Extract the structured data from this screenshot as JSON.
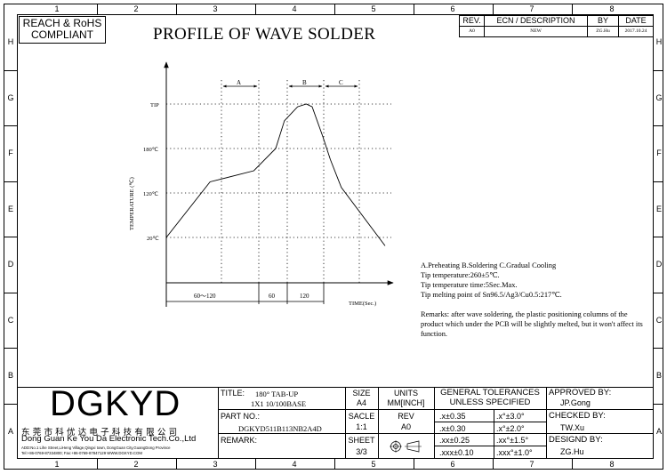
{
  "grid": {
    "columns": [
      "1",
      "2",
      "3",
      "4",
      "5",
      "6",
      "7",
      "8"
    ],
    "rows": [
      "H",
      "G",
      "F",
      "E",
      "D",
      "C",
      "B",
      "A"
    ]
  },
  "compliance": {
    "line1": "REACH & RoHS",
    "line2": "COMPLIANT"
  },
  "page_title": "PROFILE OF WAVE SOLDER",
  "revision": {
    "headers": [
      "REV.",
      "ECN / DESCRIPTION",
      "BY",
      "DATE"
    ],
    "row": [
      "A0",
      "NEW",
      "ZG.Hu",
      "2017.10.24"
    ]
  },
  "chart_data": {
    "type": "line",
    "ylabel": "TEMPERATURE (℃)",
    "xlabel": "TIME(Sec.)",
    "y_ticks": [
      "TIP",
      "180℃",
      "120℃",
      "20℃"
    ],
    "y_tick_values": [
      260,
      180,
      120,
      20
    ],
    "zones": [
      "A",
      "B",
      "C"
    ],
    "x_segments": [
      {
        "label": "60～120",
        "duration": [
          60,
          120
        ]
      },
      {
        "label": "60",
        "duration": 60
      },
      {
        "label": "120",
        "duration": 120
      }
    ],
    "series": [
      {
        "points": [
          [
            0,
            20
          ],
          [
            60,
            120
          ],
          [
            120,
            140
          ],
          [
            150,
            180
          ],
          [
            162,
            230
          ],
          [
            180,
            255
          ],
          [
            192,
            260
          ],
          [
            200,
            255
          ],
          [
            215,
            200
          ],
          [
            225,
            160
          ],
          [
            240,
            110
          ],
          [
            300,
            5
          ]
        ]
      }
    ]
  },
  "notes": {
    "line1": "A.Preheating  B.Soldering  C.Gradual Cooling",
    "line2": "Tip temperature:260±5℃.",
    "line3": "Tip temperature time:5Sec.Max.",
    "line4": "Tip melting point of Sn96.5/Ag3/Cu0.5:217℃.",
    "remarks": "Remarks: after wave soldering, the plastic positioning columns of the product  which under the PCB will be slightly melted, but it won't affect its function."
  },
  "company": {
    "logo": "DGKYD",
    "name_cn": "东 莞 市 科 优 达 电 子 科 技 有 限 公 司",
    "name_en": "Dong Guan Ke You Da Electronic Tech.Co.,Ltd",
    "address": "ADD:No.1 Lihe Street,LiHeng Village,Qingxi town, DongGuan City,GuangDong Province",
    "contact": "Tel:+86-0769-87334800; Fax:+86-0769-87847129  WWW.DGKYD.COM"
  },
  "title_block": {
    "title_label": "TITLE:",
    "title_line1": "180° TAB-UP",
    "title_line2": "1X1 10/100BASE",
    "part_label": "PART NO.:",
    "part_no": "DGKYD511B113NB2A4D",
    "remark_label": "REMARK:",
    "size_label": "SIZE",
    "size_value": "A4",
    "units_label": "UNITS",
    "units_value": "MM[INCH]",
    "scale_label": "SACLE",
    "scale_value": "1:1",
    "rev_label": "REV",
    "rev_value": "A0",
    "sheet_label": "SHEET",
    "sheet_value": "3/3",
    "tol_title1": "GENERAL TOLERANCES",
    "tol_title2": "UNLESS SPECIFIED",
    "tolerances": [
      [
        ".x±0.35",
        ".x°±3.0°"
      ],
      [
        ".x±0.30",
        ".x°±2.0°"
      ],
      [
        ".xx±0.25",
        ".xx°±1.5°"
      ],
      [
        ".xxx±0.10",
        ".xxx°±1.0°"
      ]
    ],
    "approved_label": "APPROVED BY:",
    "approved_value": "JP.Gong",
    "checked_label": "CHECKED BY:",
    "checked_value": "TW.Xu",
    "designed_label": "DESIGND BY:",
    "designed_value": "ZG.Hu"
  }
}
